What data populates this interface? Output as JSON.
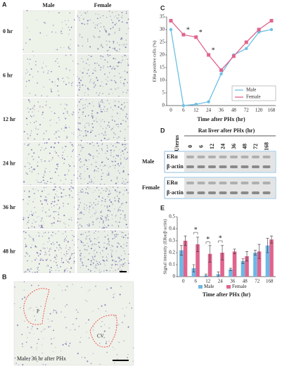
{
  "figure": {
    "panel_a": {
      "label": "A",
      "columns": [
        "Male",
        "Female"
      ],
      "rows": [
        "0 hr",
        "6 hr",
        "12 hr",
        "24 hr",
        "36 hr",
        "48 hr"
      ]
    },
    "panel_b": {
      "label": "B",
      "regions": [
        "P",
        "CV"
      ],
      "caption": "Male, 36 hr after PHx"
    },
    "panel_d": {
      "label": "D",
      "lane_header": "Uterus",
      "group_header": "Rat liver after PHx (hr)",
      "lanes": [
        "0",
        "6",
        "12",
        "24",
        "36",
        "48",
        "72",
        "168"
      ],
      "blocks": [
        {
          "sex": "Male",
          "proteins": [
            "ERα",
            "β-actin"
          ]
        },
        {
          "sex": "Female",
          "proteins": [
            "ERα",
            "β-actin"
          ]
        }
      ]
    }
  },
  "chart_data": [
    {
      "type": "line",
      "label": "C",
      "ylabel": "ERα positive cells (%)",
      "xlabel": "Time after PHx (hr)",
      "categories": [
        "0",
        "6",
        "12",
        "24",
        "36",
        "48",
        "72",
        "120",
        "168"
      ],
      "ylim": [
        0,
        35
      ],
      "yticks": [
        0,
        5,
        10,
        15,
        20,
        25,
        30,
        35
      ],
      "series": [
        {
          "name": "Male",
          "color": "#6cc0e4",
          "values": [
            30,
            0,
            0.5,
            1.5,
            12.5,
            20,
            22.5,
            29,
            30
          ]
        },
        {
          "name": "Female",
          "color": "#e0648e",
          "values": [
            33.5,
            28,
            27,
            20,
            14,
            19.5,
            25,
            30,
            33.5
          ]
        }
      ],
      "annotations": [
        {
          "text": "*",
          "category": "6"
        },
        {
          "text": "*",
          "category": "12"
        },
        {
          "text": "*",
          "category": "24"
        }
      ],
      "legend": "lower right"
    },
    {
      "type": "bar",
      "label": "E",
      "ylabel": "Signal intensity (ERα/β-actin)",
      "xlabel": "Time after PHx (hr)",
      "categories": [
        "0",
        "6",
        "12",
        "24",
        "36",
        "48",
        "72",
        "168"
      ],
      "ylim": [
        0,
        0.5
      ],
      "yticks": [
        0,
        0.1,
        0.2,
        0.3,
        0.4,
        0.5
      ],
      "series": [
        {
          "name": "Male",
          "color": "#6cb8e6",
          "values": [
            0.22,
            0.07,
            0.01,
            0.02,
            0.06,
            0.13,
            0.2,
            0.26
          ],
          "errors": [
            0.04,
            0.03,
            0.01,
            0.02,
            0.01,
            0.02,
            0.02,
            0.06
          ]
        },
        {
          "name": "Female",
          "color": "#e0648e",
          "values": [
            0.3,
            0.27,
            0.19,
            0.2,
            0.21,
            0.17,
            0.21,
            0.31
          ],
          "errors": [
            0.04,
            0.06,
            0.07,
            0.06,
            0.02,
            0.04,
            0.06,
            0.03
          ]
        }
      ],
      "annotations": [
        {
          "text": "*",
          "category": "6"
        },
        {
          "text": "*",
          "category": "12"
        },
        {
          "text": "*",
          "category": "24"
        }
      ],
      "legend": "lower center"
    }
  ]
}
